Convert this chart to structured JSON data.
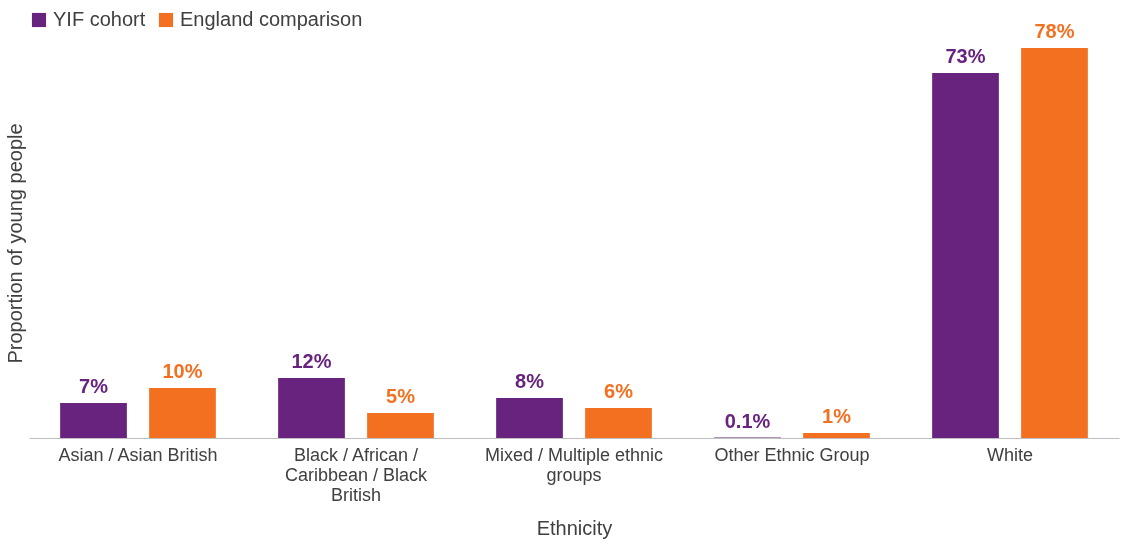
{
  "chart_data": {
    "type": "bar",
    "xlabel": "Ethnicity",
    "ylabel": "Proportion of young people",
    "categories": [
      "Asian / Asian British",
      "Black / African / Caribbean / Black British",
      "Mixed / Multiple ethnic groups",
      "Other Ethnic Group",
      "White"
    ],
    "series": [
      {
        "name": "YIF cohort",
        "color": "#68237f",
        "values": [
          7,
          12,
          8,
          0.1,
          73
        ],
        "value_labels": [
          "7%",
          "12%",
          "8%",
          "0.1%",
          "73%"
        ]
      },
      {
        "name": "England comparison",
        "color": "#f37021",
        "values": [
          10,
          5,
          6,
          1,
          78
        ],
        "value_labels": [
          "10%",
          "5%",
          "6%",
          "1%",
          "78%"
        ]
      }
    ],
    "legend": "top",
    "grid": false,
    "tick_labels": "x"
  }
}
